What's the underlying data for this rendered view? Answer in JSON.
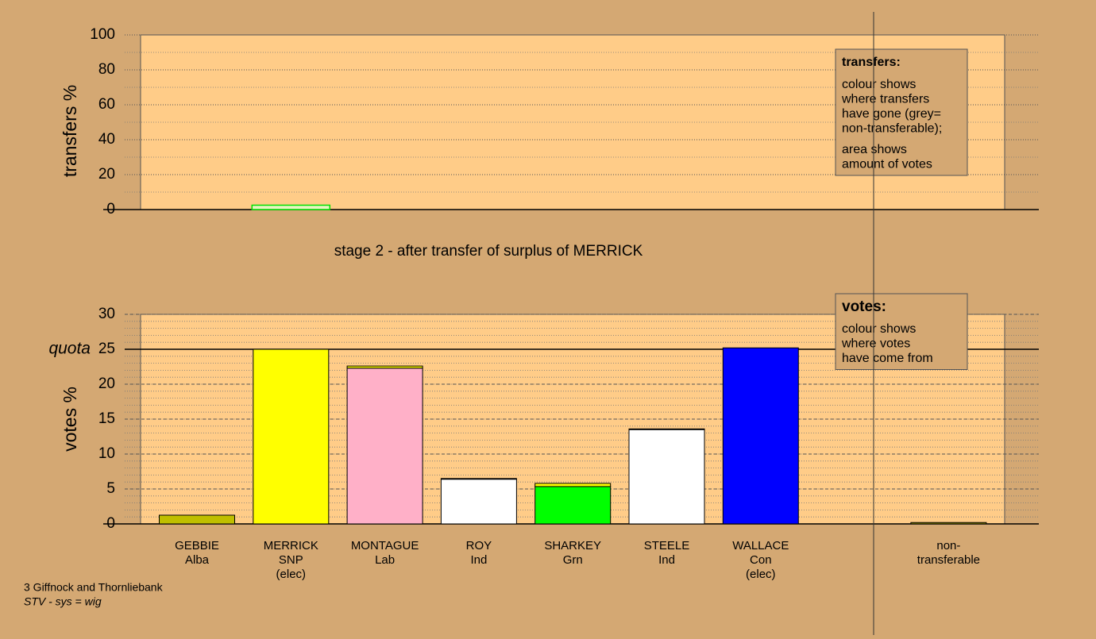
{
  "chart_data": [
    {
      "type": "bar",
      "ylabel": "transfers %",
      "ylim": [
        0,
        100
      ],
      "yticks": [
        0,
        20,
        40,
        60,
        80,
        100
      ],
      "values": [
        null,
        2.5,
        null,
        null,
        null,
        null,
        null,
        null,
        null
      ],
      "color": "#00e000",
      "note": {
        "title": "transfers:",
        "lines": [
          [
            "colour shows",
            "where transfers",
            "have gone (grey=",
            "non-transferable);"
          ],
          [
            "area shows",
            "amount of votes"
          ]
        ]
      }
    },
    {
      "type": "stacked_bar",
      "title": "stage 2 - after transfer of surplus of MERRICK",
      "ylabel": "votes %",
      "ylim": [
        0,
        30
      ],
      "yticks": [
        0,
        5,
        10,
        15,
        20,
        25,
        30
      ],
      "quota": {
        "label": "quota",
        "value": 25
      },
      "categories": [
        [
          "GEBBIE",
          "Alba"
        ],
        [
          "MERRICK",
          "SNP",
          "(elec)"
        ],
        [
          "MONTAGUE",
          "Lab"
        ],
        [
          "ROY",
          "Ind"
        ],
        [
          "SHARKEY",
          "Grn"
        ],
        [
          "STEELE",
          "Ind"
        ],
        [
          "WALLACE",
          "Con",
          "(elec)"
        ],
        null,
        [
          "non-",
          "transferable"
        ]
      ],
      "series": [
        {
          "colors": [
            "#bfbf00",
            "#ffff00",
            "#ffb0c8",
            "#ffffff",
            "#00ff00",
            "#ffffff",
            "#0000ff",
            null,
            "#9a9a00"
          ],
          "values": [
            1.25,
            25,
            22.3,
            6.4,
            5.35,
            13.5,
            25.2,
            null,
            0.2
          ]
        },
        {
          "color": "#ffff00",
          "values": [
            null,
            null,
            0.3,
            0.1,
            0.45,
            0.1,
            null,
            null,
            null
          ]
        }
      ],
      "note": {
        "title": "votes:",
        "lines": [
          [
            "colour shows",
            "where votes",
            "have come from"
          ]
        ]
      }
    }
  ],
  "footer": [
    "3 Giffnock and Thornliebank",
    "STV - sys = wig"
  ]
}
